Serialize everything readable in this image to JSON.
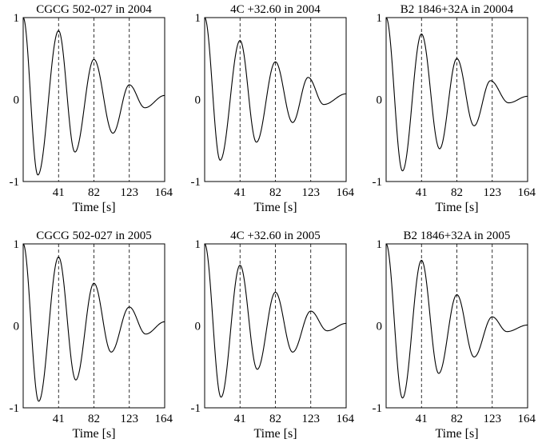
{
  "chart_data": [
    {
      "type": "line",
      "title": "CGCG 502-027 in 2004",
      "xlabel": "Time [s]",
      "xlim": [
        0,
        164
      ],
      "ylim": [
        -1,
        1
      ],
      "xticks": [
        41,
        82,
        123,
        164
      ],
      "yticks": [
        1,
        0,
        -1
      ],
      "vlines": [
        41,
        82,
        123
      ],
      "peaks": [
        [
          0,
          1.0
        ],
        [
          17,
          -0.92
        ],
        [
          41,
          0.84
        ],
        [
          60,
          -0.64
        ],
        [
          82,
          0.49
        ],
        [
          104,
          -0.41
        ],
        [
          123,
          0.18
        ],
        [
          141,
          -0.1
        ],
        [
          164,
          0.05
        ]
      ]
    },
    {
      "type": "line",
      "title": "4C +32.60 in 2004",
      "xlabel": "Time [s]",
      "xlim": [
        0,
        164
      ],
      "ylim": [
        -1,
        1
      ],
      "xticks": [
        41,
        82,
        123,
        164
      ],
      "yticks": [
        1,
        0,
        -1
      ],
      "vlines": [
        41,
        82,
        123
      ],
      "peaks": [
        [
          0,
          1.0
        ],
        [
          18,
          -0.74
        ],
        [
          41,
          0.72
        ],
        [
          60,
          -0.52
        ],
        [
          82,
          0.46
        ],
        [
          102,
          -0.28
        ],
        [
          120,
          0.27
        ],
        [
          138,
          -0.06
        ],
        [
          164,
          0.07
        ]
      ]
    },
    {
      "type": "line",
      "title": "B2 1846+32A in 20004",
      "xlabel": "Time [s]",
      "xlim": [
        0,
        164
      ],
      "ylim": [
        -1,
        1
      ],
      "xticks": [
        41,
        82,
        123,
        164
      ],
      "yticks": [
        1,
        0,
        -1
      ],
      "vlines": [
        41,
        82,
        123
      ],
      "peaks": [
        [
          0,
          1.0
        ],
        [
          19,
          -0.87
        ],
        [
          41,
          0.8
        ],
        [
          62,
          -0.6
        ],
        [
          82,
          0.5
        ],
        [
          102,
          -0.32
        ],
        [
          121,
          0.23
        ],
        [
          142,
          -0.04
        ],
        [
          164,
          0.04
        ]
      ]
    },
    {
      "type": "line",
      "title": "CGCG 502-027 in 2005",
      "xlabel": "Time [s]",
      "xlim": [
        0,
        164
      ],
      "ylim": [
        -1,
        1
      ],
      "xticks": [
        41,
        82,
        123,
        164
      ],
      "yticks": [
        1,
        0,
        -1
      ],
      "vlines": [
        41,
        82,
        123
      ],
      "peaks": [
        [
          0,
          1.0
        ],
        [
          18,
          -0.92
        ],
        [
          41,
          0.84
        ],
        [
          61,
          -0.66
        ],
        [
          82,
          0.52
        ],
        [
          102,
          -0.32
        ],
        [
          123,
          0.23
        ],
        [
          142,
          -0.1
        ],
        [
          164,
          0.05
        ]
      ]
    },
    {
      "type": "line",
      "title": "4C +32.60 in 2005",
      "xlabel": "Time [s]",
      "xlim": [
        0,
        164
      ],
      "ylim": [
        -1,
        1
      ],
      "xticks": [
        41,
        82,
        123,
        164
      ],
      "yticks": [
        1,
        0,
        -1
      ],
      "vlines": [
        41,
        82,
        123
      ],
      "peaks": [
        [
          0,
          1.0
        ],
        [
          19,
          -0.87
        ],
        [
          41,
          0.74
        ],
        [
          61,
          -0.53
        ],
        [
          82,
          0.41
        ],
        [
          102,
          -0.32
        ],
        [
          123,
          0.18
        ],
        [
          142,
          -0.06
        ],
        [
          164,
          0.03
        ]
      ]
    },
    {
      "type": "line",
      "title": "B2 1846+32A in 2005",
      "xlabel": "Time [s]",
      "xlim": [
        0,
        164
      ],
      "ylim": [
        -1,
        1
      ],
      "xticks": [
        41,
        82,
        123,
        164
      ],
      "yticks": [
        1,
        0,
        -1
      ],
      "vlines": [
        41,
        82,
        123
      ],
      "peaks": [
        [
          0,
          1.0
        ],
        [
          19,
          -0.88
        ],
        [
          41,
          0.8
        ],
        [
          61,
          -0.58
        ],
        [
          82,
          0.38
        ],
        [
          102,
          -0.38
        ],
        [
          123,
          0.11
        ],
        [
          140,
          -0.07
        ],
        [
          164,
          0.01
        ]
      ]
    }
  ]
}
